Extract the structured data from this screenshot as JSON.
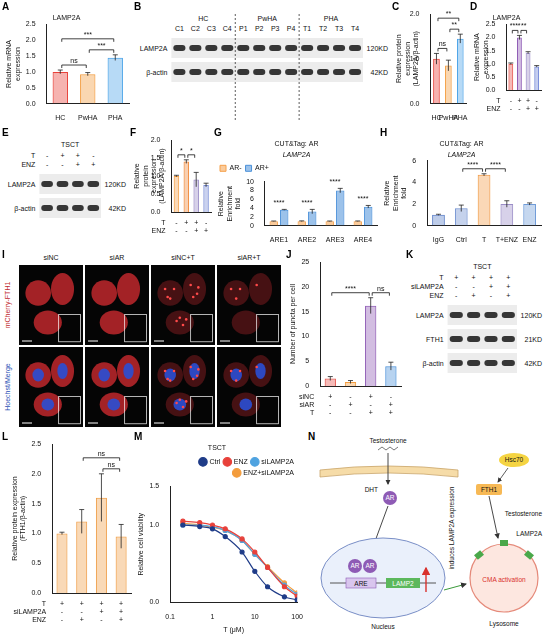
{
  "chart_data": [
    {
      "panel": "A",
      "type": "bar",
      "title": "LAMP2A",
      "y_label": "Relative mRNA expression",
      "categories": [
        "HC",
        "PwHA",
        "PHA"
      ],
      "values": [
        1.0,
        0.93,
        1.45
      ],
      "errors": [
        0.06,
        0.05,
        0.09
      ],
      "colors": [
        "#e8413a",
        "#f39c3d",
        "#4aa3e8"
      ],
      "ylim": [
        0,
        2.5
      ],
      "yticks": [
        {
          "value": 0,
          "label": "0.0"
        },
        0.5,
        {
          "value": 1,
          "label": "1.0"
        },
        1.5,
        {
          "value": 2,
          "label": "2.0"
        },
        2.5
      ],
      "grid": false,
      "annotations": [
        {
          "from": 0,
          "to": 1,
          "text": "ns"
        },
        {
          "from": 1,
          "to": 2,
          "text": "***"
        },
        {
          "from": 0,
          "to": 2,
          "text": "***"
        }
      ]
    },
    {
      "panel": "C",
      "type": "bar",
      "y_label": "Relative protein expression (LAMP2A/β-actin)",
      "categories": [
        "HC",
        "PwHA",
        "PHA"
      ],
      "values": [
        1.0,
        0.85,
        1.45
      ],
      "errors": [
        0.12,
        0.12,
        0.1
      ],
      "colors": [
        "#e8413a",
        "#f39c3d",
        "#4aa3e8"
      ],
      "ylim": [
        0,
        2
      ],
      "yticks": [
        {
          "value": 0,
          "label": "0.0"
        },
        0.5,
        {
          "value": 1,
          "label": "1.0"
        },
        1.5,
        {
          "value": 2,
          "label": "2.0"
        }
      ],
      "grid": false,
      "annotations": [
        {
          "from": 0,
          "to": 1,
          "text": "ns"
        },
        {
          "from": 1,
          "to": 2,
          "text": "**"
        },
        {
          "from": 0,
          "to": 2,
          "text": "**"
        }
      ]
    },
    {
      "panel": "D",
      "type": "bar",
      "title": "LAMP2A",
      "y_label": "Relative mRNA expression",
      "conditions": [
        {
          "name": "T",
          "values": [
            "-",
            "+",
            "+",
            "-"
          ]
        },
        {
          "name": "ENZ",
          "values": [
            "-",
            "-",
            "+",
            "+"
          ]
        }
      ],
      "values": [
        1.0,
        2.0,
        1.42,
        0.9
      ],
      "errors": [
        0.03,
        0.08,
        0.04,
        0.03
      ],
      "colors": [
        "#e5534b",
        "#8e5bb5",
        "#9d8fc9",
        "#6f84d6"
      ],
      "ylim": [
        0,
        2.5
      ],
      "yticks": [
        {
          "value": 0,
          "label": "0.0"
        },
        0.5,
        {
          "value": 1,
          "label": "1.0"
        },
        1.5,
        {
          "value": 2,
          "label": "2.0"
        },
        2.5
      ],
      "grid": false,
      "annotations": [
        {
          "from": 0,
          "to": 1,
          "text": "****"
        },
        {
          "from": 1,
          "to": 2,
          "text": "**"
        }
      ]
    },
    {
      "panel": "F",
      "type": "bar",
      "y_label": "Relative protein expression (LAMP2A/β-actin)",
      "conditions": [
        {
          "name": "T",
          "values": [
            "-",
            "+",
            "+",
            "-"
          ]
        },
        {
          "name": "ENZ",
          "values": [
            "-",
            "-",
            "+",
            "+"
          ]
        }
      ],
      "values": [
        1.0,
        1.4,
        0.9,
        0.75
      ],
      "errors": [
        0.02,
        0.05,
        0.2,
        0.05
      ],
      "colors": [
        "#f4a04a",
        "#f08a3c",
        "#9b8dc7",
        "#7b8fd6"
      ],
      "ylim": [
        0,
        2
      ],
      "yticks": [
        {
          "value": 0,
          "label": "0.0"
        },
        0.5,
        {
          "value": 1,
          "label": "1.0"
        },
        1.5,
        {
          "value": 2,
          "label": "2.0"
        }
      ],
      "grid": false,
      "annotations": [
        {
          "from": 0,
          "to": 1,
          "text": "*"
        },
        {
          "from": 1,
          "to": 2,
          "text": "*"
        }
      ]
    },
    {
      "panel": "G",
      "type": "bar",
      "title": "CUT&Tag: AR",
      "subtitle": "LAMP2A",
      "y_label": "Relative Enrichment fold",
      "categories": [
        "ARE1",
        "ARE2",
        "ARE3",
        "ARE4"
      ],
      "series": [
        {
          "name": "AR-",
          "color": "#f5a04a",
          "values": [
            1.0,
            1.0,
            1.0,
            1.0
          ],
          "errors": [
            0.05,
            0.08,
            0.05,
            0.06
          ]
        },
        {
          "name": "AR+",
          "color": "#4a90d9",
          "values": [
            3.6,
            3.2,
            8.0,
            4.3
          ],
          "errors": [
            0.1,
            0.5,
            0.5,
            0.3
          ]
        }
      ],
      "ylim": [
        0,
        10
      ],
      "yticks": [
        0,
        2,
        4,
        6,
        8,
        10
      ],
      "grid": false,
      "legend": "top-left",
      "annotations": [
        {
          "from": 0,
          "to": 0,
          "text": "****"
        },
        {
          "from": 1,
          "to": 1,
          "text": "****"
        },
        {
          "from": 2,
          "to": 2,
          "text": "****"
        },
        {
          "from": 3,
          "to": 3,
          "text": "****"
        }
      ]
    },
    {
      "panel": "H",
      "type": "bar",
      "title": "CUT&Tag: AR",
      "subtitle": "LAMP2A",
      "y_label": "Relative Enrichment fold",
      "categories": [
        "IgG",
        "Ctrl",
        "T",
        "T+ENZ",
        "ENZ"
      ],
      "values": [
        1.0,
        1.6,
        4.7,
        2.0,
        2.0
      ],
      "errors": [
        0.05,
        0.3,
        0.1,
        0.3,
        0.1
      ],
      "colors": [
        "#5b7fc7",
        "#6f8fd0",
        "#f29d4b",
        "#9b8dc7",
        "#6f9bd8"
      ],
      "ylim": [
        0,
        6
      ],
      "yticks": [
        0,
        2,
        4,
        6
      ],
      "grid": false,
      "annotations": [
        {
          "from": 1,
          "to": 2,
          "text": "****"
        },
        {
          "from": 2,
          "to": 3,
          "text": "****"
        }
      ]
    },
    {
      "panel": "J",
      "type": "bar",
      "y_label": "Number of puncta per cell",
      "conditions": [
        {
          "name": "siNC",
          "values": [
            "+",
            "-",
            "+",
            "-"
          ]
        },
        {
          "name": "siAR",
          "values": [
            "-",
            "+",
            "-",
            "+"
          ]
        },
        {
          "name": "T",
          "values": [
            "-",
            "-",
            "+",
            "+"
          ]
        }
      ],
      "values": [
        1.5,
        0.8,
        16.2,
        4.0
      ],
      "errors": [
        0.4,
        0.3,
        1.6,
        0.8
      ],
      "colors": [
        "#e5534b",
        "#f39c3d",
        "#8e5bb5",
        "#4a90d9"
      ],
      "ylim": [
        0,
        25
      ],
      "yticks": [
        0,
        5,
        10,
        15,
        20,
        25
      ],
      "grid": false,
      "annotations": [
        {
          "from": 0,
          "to": 2,
          "text": "****"
        },
        {
          "from": 2,
          "to": 3,
          "text": "ns"
        }
      ]
    },
    {
      "panel": "L",
      "type": "bar",
      "y_label": "Relative protein expression (FTH1/β-actin)",
      "conditions": [
        {
          "name": "T",
          "values": [
            "+",
            "+",
            "+",
            "+"
          ]
        },
        {
          "name": "siLAMP2A",
          "values": [
            "-",
            "-",
            "+",
            "+"
          ]
        },
        {
          "name": "ENZ",
          "values": [
            "-",
            "+",
            "-",
            "+"
          ]
        }
      ],
      "values": [
        1.0,
        1.2,
        1.6,
        0.95
      ],
      "errors": [
        0.02,
        0.2,
        0.4,
        0.2
      ],
      "color": "#f0a04b",
      "ylim": [
        0,
        2.5
      ],
      "yticks": [
        {
          "value": 0,
          "label": "0.0"
        },
        0.5,
        {
          "value": 1,
          "label": "1.0"
        },
        1.5,
        {
          "value": 2,
          "label": "2.0"
        },
        2.5
      ],
      "grid": false,
      "annotations": [
        {
          "from": 1,
          "to": 3,
          "text": "ns"
        },
        {
          "from": 2,
          "to": 3,
          "text": "ns"
        }
      ]
    },
    {
      "panel": "M",
      "type": "line",
      "title": "TSCT",
      "x_label": "T (μM)",
      "y_label": "Relative cell viability",
      "x": [
        0.2,
        0.5,
        1,
        2,
        5,
        10,
        20,
        50,
        100
      ],
      "series": [
        {
          "name": "Ctrl",
          "color": "#1f3c88",
          "values": [
            1.0,
            0.98,
            0.95,
            0.85,
            0.65,
            0.4,
            0.2,
            0.07,
            0.03
          ]
        },
        {
          "name": "ENZ",
          "color": "#e8413a",
          "values": [
            1.05,
            1.03,
            1.0,
            0.95,
            0.82,
            0.65,
            0.45,
            0.2,
            0.08
          ]
        },
        {
          "name": "siLAMP2A",
          "color": "#4fa3e0",
          "values": [
            1.0,
            1.0,
            0.98,
            0.93,
            0.8,
            0.62,
            0.45,
            0.22,
            0.1
          ]
        },
        {
          "name": "ENZ+siLAMP2A",
          "color": "#f39c3d",
          "values": [
            1.02,
            1.0,
            0.97,
            0.93,
            0.8,
            0.62,
            0.46,
            0.25,
            0.12
          ]
        }
      ],
      "xlim": [
        0.1,
        100
      ],
      "xticks": [
        0.1,
        1,
        10,
        100
      ],
      "log": "x",
      "ylim": [
        0,
        1.5
      ],
      "yticks": [
        {
          "value": 0,
          "label": "0.0"
        },
        0.5,
        {
          "value": 1,
          "label": "1.0"
        },
        1.5
      ],
      "grid": false,
      "legend": "top-right",
      "marker": "circle"
    }
  ],
  "blots": [
    {
      "panel": "B",
      "groups": [
        {
          "label": "HC",
          "lanes": [
            "C1",
            "C2",
            "C3",
            "C4"
          ]
        },
        {
          "label": "PwHA",
          "lanes": [
            "P1",
            "P2",
            "P3",
            "P4"
          ]
        },
        {
          "label": "PHA",
          "lanes": [
            "T1",
            "T2",
            "T3",
            "T4"
          ]
        }
      ],
      "rows": [
        {
          "name": "LAMP2A",
          "size": "120KD"
        },
        {
          "name": "β-actin",
          "size": "42KD"
        }
      ]
    },
    {
      "panel": "E",
      "title": "TSCT",
      "conditions": [
        {
          "name": "T",
          "values": [
            "-",
            "+",
            "+",
            "-"
          ]
        },
        {
          "name": "ENZ",
          "values": [
            "-",
            "-",
            "+",
            "+"
          ]
        }
      ],
      "rows": [
        {
          "name": "LAMP2A",
          "size": "120KD"
        },
        {
          "name": "β-actin",
          "size": "42KD"
        }
      ]
    },
    {
      "panel": "K",
      "title": "TSCT",
      "conditions": [
        {
          "name": "T",
          "values": [
            "+",
            "+",
            "+",
            "+"
          ]
        },
        {
          "name": "siLAMP2A",
          "values": [
            "-",
            "-",
            "+",
            "+"
          ]
        },
        {
          "name": "ENZ",
          "values": [
            "-",
            "+",
            "-",
            "+"
          ]
        }
      ],
      "rows": [
        {
          "name": "LAMP2A",
          "size": "120KD"
        },
        {
          "name": "FTH1",
          "size": "21KD"
        },
        {
          "name": "β-actin",
          "size": "42KD"
        }
      ]
    }
  ],
  "images": {
    "panel": "I",
    "columns": [
      "siNC",
      "siAR",
      "siNC+T",
      "siAR+T"
    ],
    "rows": [
      "mCherry-FTH1",
      "Hoechst/Merge"
    ]
  },
  "diagram": {
    "panel": "N",
    "testosterone": "Testosterone",
    "dht": "DHT",
    "ar": "AR",
    "are": "ARE",
    "gene": "LAMP2",
    "induces": "induces LAMP2A expression",
    "nucleus": "Nucleus",
    "fth1": "FTH1",
    "hsc70": "Hsc70",
    "fth1_testosterone": "Testosterone",
    "cma": "CMA activation",
    "lamp2a": "LAMP2A",
    "lysosome": "Lysosome"
  }
}
